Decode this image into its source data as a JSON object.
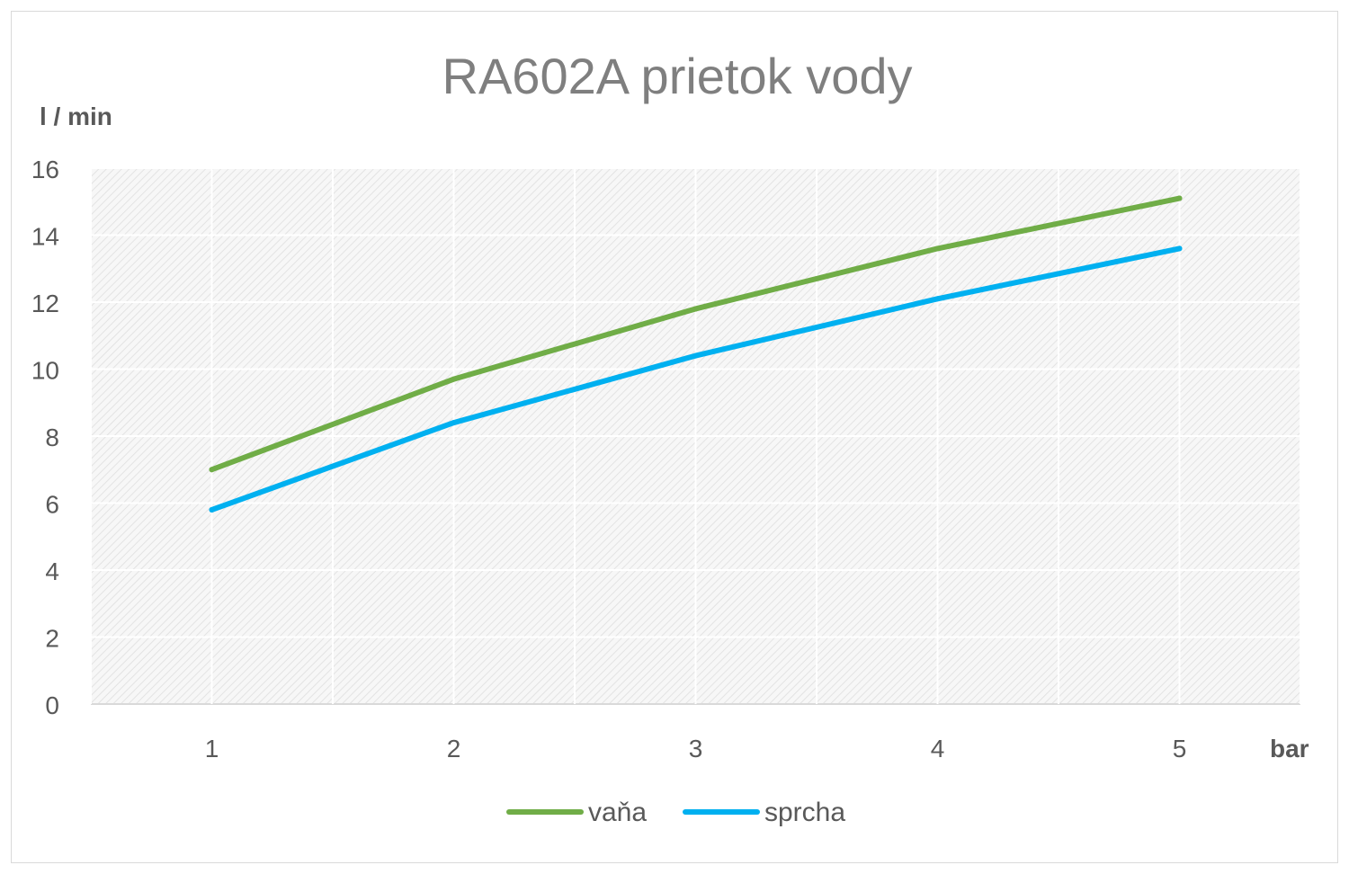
{
  "chart_data": {
    "type": "line",
    "title": "RA602A prietok vody",
    "xlabel": "bar",
    "ylabel": "l / min",
    "categories": [
      "1",
      "2",
      "3",
      "4",
      "5"
    ],
    "x": [
      1,
      2,
      3,
      4,
      5
    ],
    "ylim": [
      0,
      16
    ],
    "yticks": [
      0,
      2,
      4,
      6,
      8,
      10,
      12,
      14,
      16
    ],
    "grid": true,
    "legend_position": "bottom",
    "series": [
      {
        "name": "vaňa",
        "color": "#70ad47",
        "values": [
          7.0,
          9.7,
          11.8,
          13.6,
          15.1
        ]
      },
      {
        "name": "sprcha",
        "color": "#00b0f0",
        "values": [
          5.8,
          8.4,
          10.4,
          12.1,
          13.6
        ]
      }
    ]
  }
}
